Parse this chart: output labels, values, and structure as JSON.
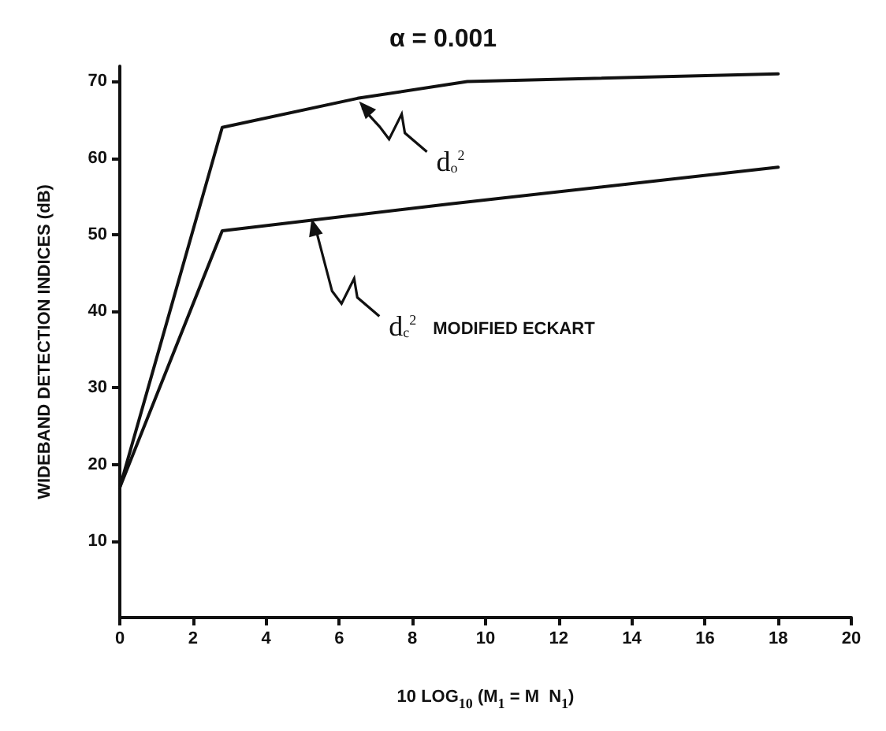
{
  "chart_data": {
    "type": "line",
    "title": "α = 0.001",
    "xlabel": "10 LOG$_{10}$ (M$_{1}$ = M  N$_{1}$)",
    "ylabel": "WIDEBAND DETECTION INDICES (dB)",
    "x": [
      0,
      2.8,
      6.5,
      9.5,
      18
    ],
    "series": [
      {
        "color": "#111111",
        "values": [
          17,
          64,
          67.8,
          70,
          71
        ]
      },
      {
        "color": "#111111",
        "x": [
          0,
          2.8,
          9,
          18
        ],
        "values": [
          17,
          50.5,
          54,
          58.8
        ]
      }
    ],
    "xlim": [
      0,
      20
    ],
    "xticks": [
      0,
      2,
      4,
      6,
      8,
      10,
      12,
      14,
      16,
      18,
      20
    ],
    "ylim": [
      0,
      72
    ],
    "yticks": [
      10,
      20,
      30,
      40,
      50,
      60,
      70
    ],
    "grid": false,
    "marker": "none",
    "line_style": "solid",
    "annotations": [
      {
        "text": "d$_{o}$$^{2}$",
        "x": 6.5,
        "y": 67.8
      },
      {
        "text": "d$_{c}$$^{2}$ MODIFIED ECKART",
        "x": 5.2,
        "y": 52.5
      }
    ]
  }
}
